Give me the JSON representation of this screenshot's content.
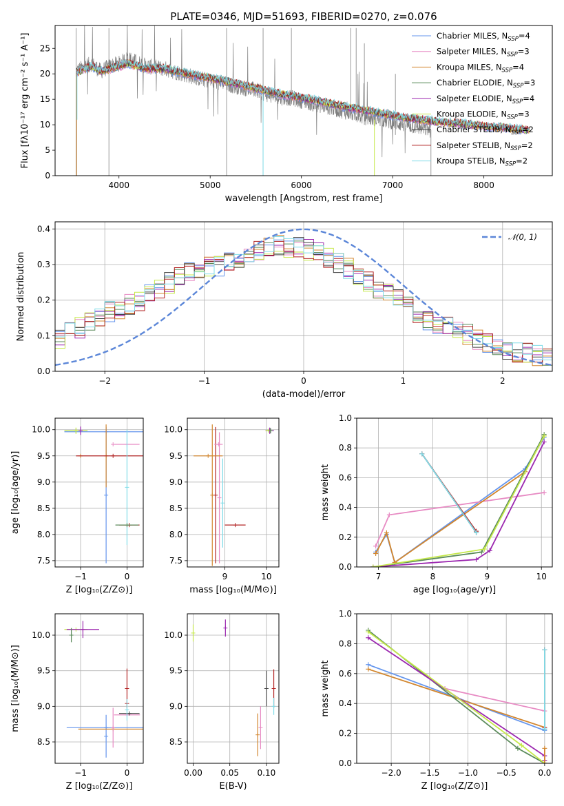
{
  "chart_data": [
    {
      "id": "spectrum",
      "type": "line",
      "title": "PLATE=0346, MJD=51693, FIBERID=0270, z=0.076",
      "xlabel": "wavelength [Angstrom, rest frame]",
      "ylabel": "Flux [fλ10⁻¹⁷ erg cm⁻² s⁻¹ A⁻¹]",
      "xlim": [
        3300,
        8750
      ],
      "ylim": [
        0,
        29.5
      ],
      "xticks": [
        4000,
        5000,
        6000,
        7000,
        8000
      ],
      "yticks": [
        0,
        5,
        10,
        15,
        20,
        25
      ],
      "data_color": "#808080",
      "data_anchors": [
        [
          3530,
          20.5
        ],
        [
          3700,
          22
        ],
        [
          3800,
          20.5
        ],
        [
          3900,
          21.5
        ],
        [
          4000,
          22
        ],
        [
          4100,
          23
        ],
        [
          4300,
          21.5
        ],
        [
          4500,
          21
        ],
        [
          4700,
          20
        ],
        [
          4900,
          19
        ],
        [
          5100,
          18.3
        ],
        [
          5300,
          17.5
        ],
        [
          5500,
          16.8
        ],
        [
          5700,
          15.5
        ],
        [
          5900,
          15.2
        ],
        [
          6100,
          14.3
        ],
        [
          6300,
          13.5
        ],
        [
          6500,
          12.5
        ],
        [
          6700,
          11.5
        ],
        [
          6900,
          11
        ],
        [
          7100,
          10.2
        ],
        [
          7300,
          9.5
        ],
        [
          7420,
          9
        ]
      ],
      "model_anchors": [
        [
          3530,
          20.2
        ],
        [
          3700,
          21.5
        ],
        [
          3800,
          20.5
        ],
        [
          3900,
          21
        ],
        [
          4000,
          21.5
        ],
        [
          4100,
          22
        ],
        [
          4300,
          21
        ],
        [
          4500,
          21
        ],
        [
          4700,
          20.2
        ],
        [
          4900,
          19.5
        ],
        [
          5100,
          18.8
        ],
        [
          5300,
          18
        ],
        [
          5500,
          17.2
        ],
        [
          5700,
          16.3
        ],
        [
          5900,
          15.6
        ],
        [
          6100,
          15
        ],
        [
          6300,
          14.2
        ],
        [
          6500,
          13.5
        ],
        [
          6700,
          12.8
        ],
        [
          6900,
          12.2
        ],
        [
          7100,
          11.5
        ],
        [
          7300,
          11
        ],
        [
          7500,
          10.6
        ],
        [
          7700,
          10.3
        ],
        [
          7900,
          9.9
        ],
        [
          8100,
          9.6
        ],
        [
          8300,
          9.3
        ],
        [
          8500,
          8.9
        ]
      ],
      "legend": [
        {
          "main": "Chabrier MILES, N",
          "sub": "SSP",
          "tail": "=4",
          "color": "#6495ed"
        },
        {
          "main": "Salpeter MILES, N",
          "sub": "SSP",
          "tail": "=3",
          "color": "#e78ac3"
        },
        {
          "main": "Kroupa MILES, N",
          "sub": "SSP",
          "tail": "=4",
          "color": "#d2862e"
        },
        {
          "main": "Chabrier ELODIE, N",
          "sub": "SSP",
          "tail": "=3",
          "color": "#5a8a5a"
        },
        {
          "main": "Salpeter ELODIE, N",
          "sub": "SSP",
          "tail": "=4",
          "color": "#9b27af"
        },
        {
          "main": "Kroupa ELODIE, N",
          "sub": "SSP",
          "tail": "=3",
          "color": "#c5e84a"
        },
        {
          "main": "Chabrier STELIB, N",
          "sub": "SSP",
          "tail": "=2",
          "color": "#444444"
        },
        {
          "main": "Salpeter STELIB, N",
          "sub": "SSP",
          "tail": "=2",
          "color": "#b22222"
        },
        {
          "main": "Kroupa STELIB, N",
          "sub": "SSP",
          "tail": "=2",
          "color": "#80dce8"
        }
      ]
    },
    {
      "id": "residuals",
      "type": "line",
      "xlabel": "(data-model)/error",
      "ylabel": "Normed distribution",
      "xlim": [
        -2.5,
        2.5
      ],
      "ylim": [
        0,
        0.42
      ],
      "xticks": [
        -2,
        -1,
        0,
        1,
        2
      ],
      "yticks": [
        0.0,
        0.1,
        0.2,
        0.3,
        0.4
      ],
      "gaussian": {
        "name": "𝒩(0, 1)",
        "mu": 0,
        "sigma": 1,
        "color": "#5b86d8"
      },
      "bin_width": 0.1,
      "profile": [
        [
          -2.5,
          0.085
        ],
        [
          -2.2,
          0.13
        ],
        [
          -2.0,
          0.165
        ],
        [
          -1.8,
          0.18
        ],
        [
          -1.5,
          0.22
        ],
        [
          -1.2,
          0.275
        ],
        [
          -1.0,
          0.29
        ],
        [
          -0.8,
          0.3
        ],
        [
          -0.5,
          0.33
        ],
        [
          -0.3,
          0.355
        ],
        [
          0.0,
          0.345
        ],
        [
          0.2,
          0.33
        ],
        [
          0.5,
          0.28
        ],
        [
          0.8,
          0.225
        ],
        [
          1.0,
          0.2
        ],
        [
          1.2,
          0.145
        ],
        [
          1.5,
          0.12
        ],
        [
          1.8,
          0.085
        ],
        [
          2.0,
          0.06
        ],
        [
          2.3,
          0.048
        ],
        [
          2.5,
          0.03
        ]
      ]
    },
    {
      "id": "age-vs-z",
      "type": "scatter",
      "xlabel": "Z [log₁₀(Z/Z⊙)]",
      "ylabel": "age  [log₁₀(age/yr)]",
      "xlim": [
        -1.55,
        0.35
      ],
      "ylim": [
        7.38,
        10.22
      ],
      "xticks": [
        -1,
        0
      ],
      "yticks": [
        7.5,
        8.0,
        8.5,
        9.0,
        9.5,
        10.0
      ],
      "errorbars": [
        {
          "x": -0.45,
          "y": 9.96,
          "xerr": 0.9,
          "yerr": 0.0,
          "color": "#6495ed"
        },
        {
          "x": -0.45,
          "y": 8.75,
          "xerr": 0.0,
          "yerr": 1.3,
          "color": "#6495ed"
        },
        {
          "x": -0.3,
          "y": 9.72,
          "xerr": 0.0,
          "yerr": 0.0,
          "color": "#e78ac3"
        },
        {
          "x": 0.0,
          "y": 9.72,
          "xerr": 0.27,
          "yerr": 0.0,
          "color": "#e78ac3"
        },
        {
          "x": -1.0,
          "y": 9.5,
          "xerr": 0.0,
          "yerr": 0.0,
          "color": "#d2862e"
        },
        {
          "x": -0.45,
          "y": 9.5,
          "xerr": 0.0,
          "yerr": 0.6,
          "color": "#d2862e"
        },
        {
          "x": -0.3,
          "y": 9.5,
          "xerr": 0.8,
          "yerr": 0.0,
          "color": "#b22222"
        },
        {
          "x": 0.05,
          "y": 8.18,
          "xerr": 0.22,
          "yerr": 0.0,
          "color": "#b22222"
        },
        {
          "x": -1.1,
          "y": 9.98,
          "xerr": 0.25,
          "yerr": 0.06,
          "color": "#c5e84a"
        },
        {
          "x": -1.0,
          "y": 9.98,
          "xerr": 0.0,
          "yerr": 0.08,
          "color": "#9b27af"
        },
        {
          "x": 0.0,
          "y": 8.9,
          "xerr": 0.0,
          "yerr": 1.1,
          "color": "#80dce8"
        },
        {
          "x": 0.0,
          "y": 8.18,
          "xerr": 0.25,
          "yerr": 0.0,
          "color": "#5a8a5a"
        }
      ]
    },
    {
      "id": "age-vs-mass",
      "type": "scatter",
      "xlabel": "mass [log₁₀(M/M⊙)]",
      "ylabel": "",
      "xlim": [
        8.1,
        10.3
      ],
      "ylim": [
        7.38,
        10.22
      ],
      "xticks": [
        9,
        10
      ],
      "yticks": [
        7.5,
        8.0,
        8.5,
        9.0,
        9.5,
        10.0
      ],
      "errorbars": [
        {
          "x": 8.7,
          "y": 8.75,
          "xerr": 0.0,
          "yerr": 1.35,
          "color": "#d2862e"
        },
        {
          "x": 8.78,
          "y": 8.75,
          "xerr": 0.0,
          "yerr": 1.3,
          "color": "#b22222"
        },
        {
          "x": 8.87,
          "y": 8.7,
          "xerr": 0.0,
          "yerr": 1.25,
          "color": "#e78ac3"
        },
        {
          "x": 8.95,
          "y": 8.6,
          "xerr": 0.0,
          "yerr": 0.85,
          "color": "#80dce8"
        },
        {
          "x": 8.6,
          "y": 9.5,
          "xerr": 0.35,
          "yerr": 0.0,
          "color": "#d2862e"
        },
        {
          "x": 8.85,
          "y": 9.72,
          "xerr": 0.1,
          "yerr": 0.0,
          "color": "#e78ac3"
        },
        {
          "x": 9.25,
          "y": 8.18,
          "xerr": 0.25,
          "yerr": 0.0,
          "color": "#b22222"
        },
        {
          "x": 10.08,
          "y": 9.98,
          "xerr": 0.1,
          "yerr": 0.06,
          "color": "#9b27af"
        },
        {
          "x": 10.05,
          "y": 9.98,
          "xerr": 0.07,
          "yerr": 0.0,
          "color": "#c5e84a"
        },
        {
          "x": 10.1,
          "y": 9.98,
          "xerr": 0.0,
          "yerr": 0.05,
          "color": "#5a8a5a"
        }
      ]
    },
    {
      "id": "weight-vs-age",
      "type": "line",
      "xlabel": "age  [log₁₀(age/yr)]",
      "ylabel": "mass weight",
      "xlim": [
        6.6,
        10.2
      ],
      "ylim": [
        0,
        1.0
      ],
      "xticks": [
        7,
        8,
        9,
        10
      ],
      "yticks": [
        0.0,
        0.2,
        0.4,
        0.6,
        0.8,
        1.0
      ],
      "series": [
        {
          "color": "#6495ed",
          "x": [
            6.95,
            7.15,
            7.3,
            9.7,
            10.05
          ],
          "y": [
            0.1,
            0.22,
            0.03,
            0.66,
            0.87
          ]
        },
        {
          "color": "#e78ac3",
          "x": [
            6.95,
            7.2,
            10.05
          ],
          "y": [
            0.14,
            0.35,
            0.5
          ]
        },
        {
          "color": "#d2862e",
          "x": [
            6.95,
            7.15,
            7.3,
            9.7,
            10.05
          ],
          "y": [
            0.09,
            0.23,
            0.03,
            0.64,
            0.88
          ]
        },
        {
          "color": "#5a8a5a",
          "x": [
            6.9,
            8.9,
            10.05
          ],
          "y": [
            0.0,
            0.1,
            0.89
          ]
        },
        {
          "color": "#9b27af",
          "x": [
            6.9,
            8.8,
            9.05,
            10.05
          ],
          "y": [
            0.0,
            0.05,
            0.11,
            0.84
          ]
        },
        {
          "color": "#c5e84a",
          "x": [
            6.9,
            8.95,
            10.05
          ],
          "y": [
            0.0,
            0.12,
            0.88
          ]
        },
        {
          "color": "#444444",
          "x": [
            7.8,
            8.8
          ],
          "y": [
            0.76,
            0.23
          ]
        },
        {
          "color": "#b22222",
          "x": [
            7.8,
            8.8
          ],
          "y": [
            0.76,
            0.24
          ]
        },
        {
          "color": "#80dce8",
          "x": [
            7.8,
            8.8
          ],
          "y": [
            0.76,
            0.23
          ]
        }
      ]
    },
    {
      "id": "mass-vs-z",
      "type": "scatter",
      "xlabel": "Z [log₁₀(Z/Z⊙)]",
      "ylabel": "mass [log₁₀(M/M⊙)]",
      "xlim": [
        -1.55,
        0.35
      ],
      "ylim": [
        8.2,
        10.3
      ],
      "xticks": [
        -1,
        0
      ],
      "yticks": [
        8.5,
        9.0,
        9.5,
        10.0
      ],
      "errorbars": [
        {
          "x": -1.1,
          "y": 10.08,
          "xerr": 0.25,
          "yerr": 0.0,
          "color": "#c5e84a"
        },
        {
          "x": -0.95,
          "y": 10.08,
          "xerr": 0.35,
          "yerr": 0.12,
          "color": "#9b27af"
        },
        {
          "x": -1.2,
          "y": 10.0,
          "xerr": 0.0,
          "yerr": 0.1,
          "color": "#5a8a5a"
        },
        {
          "x": -0.45,
          "y": 8.7,
          "xerr": 0.85,
          "yerr": 0.0,
          "color": "#6495ed"
        },
        {
          "x": -0.45,
          "y": 8.58,
          "xerr": 0.0,
          "yerr": 0.3,
          "color": "#6495ed"
        },
        {
          "x": -0.3,
          "y": 8.68,
          "xerr": 0.75,
          "yerr": 0.0,
          "color": "#d2862e"
        },
        {
          "x": 0.0,
          "y": 8.88,
          "xerr": 0.28,
          "yerr": 0.0,
          "color": "#e78ac3"
        },
        {
          "x": -0.3,
          "y": 8.7,
          "xerr": 0.0,
          "yerr": 0.28,
          "color": "#e78ac3"
        },
        {
          "x": 0.0,
          "y": 9.04,
          "xerr": 0.0,
          "yerr": 0.0,
          "color": "#b22222"
        },
        {
          "x": 0.0,
          "y": 9.25,
          "xerr": 0.0,
          "yerr": 0.28,
          "color": "#b22222"
        },
        {
          "x": 0.05,
          "y": 8.9,
          "xerr": 0.22,
          "yerr": 0.0,
          "color": "#444444"
        },
        {
          "x": 0.0,
          "y": 8.95,
          "xerr": 0.0,
          "yerr": 0.15,
          "color": "#80dce8"
        }
      ]
    },
    {
      "id": "mass-vs-ebv",
      "type": "scatter",
      "xlabel": "E(B-V)",
      "ylabel": "",
      "xlim": [
        -0.008,
        0.117
      ],
      "ylim": [
        8.2,
        10.3
      ],
      "xticks": [
        0.0,
        0.05,
        0.1
      ],
      "xticklabels": [
        "0.00",
        "0.05",
        "0.10"
      ],
      "yticks": [
        8.5,
        9.0,
        9.5,
        10.0
      ],
      "errorbars": [
        {
          "x": 0.0,
          "y": 10.03,
          "xerr": 0.0,
          "yerr": 0.12,
          "color": "#c5e84a"
        },
        {
          "x": 0.044,
          "y": 10.1,
          "xerr": 0.0,
          "yerr": 0.12,
          "color": "#9b27af"
        },
        {
          "x": 0.088,
          "y": 8.6,
          "xerr": 0.0,
          "yerr": 0.3,
          "color": "#d2862e"
        },
        {
          "x": 0.092,
          "y": 8.7,
          "xerr": 0.0,
          "yerr": 0.3,
          "color": "#e78ac3"
        },
        {
          "x": 0.1,
          "y": 9.25,
          "xerr": 0.0,
          "yerr": 0.25,
          "color": "#444444"
        },
        {
          "x": 0.11,
          "y": 9.25,
          "xerr": 0.0,
          "yerr": 0.27,
          "color": "#b22222"
        },
        {
          "x": 0.11,
          "y": 9.0,
          "xerr": 0.0,
          "yerr": 0.12,
          "color": "#80dce8"
        }
      ]
    },
    {
      "id": "weight-vs-z",
      "type": "line",
      "xlabel": "Z [log₁₀(Z/Z⊙)]",
      "ylabel": "mass weight",
      "xlim": [
        -2.45,
        0.1
      ],
      "ylim": [
        0,
        1.0
      ],
      "xticks": [
        -2.0,
        -1.5,
        -1.0,
        -0.5,
        0.0
      ],
      "xticklabels": [
        "−2.0",
        "−1.5",
        "−1.0",
        "−0.5",
        "0.0"
      ],
      "yticks": [
        0.0,
        0.2,
        0.4,
        0.6,
        0.8,
        1.0
      ],
      "series": [
        {
          "color": "#6495ed",
          "x": [
            -2.3,
            0.0
          ],
          "y": [
            0.66,
            0.22
          ]
        },
        {
          "color": "#e78ac3",
          "x": [
            -1.3,
            0.0
          ],
          "y": [
            0.5,
            0.35
          ]
        },
        {
          "color": "#d2862e",
          "x": [
            -2.3,
            0.0
          ],
          "y": [
            0.63,
            0.24
          ]
        },
        {
          "color": "#5a8a5a",
          "x": [
            -2.3,
            -0.35,
            0.0
          ],
          "y": [
            0.89,
            0.1,
            0.0
          ]
        },
        {
          "color": "#9b27af",
          "x": [
            -2.3,
            0.0,
            0.0
          ],
          "y": [
            0.84,
            0.05,
            0.02
          ]
        },
        {
          "color": "#c5e84a",
          "x": [
            -2.3,
            -0.3,
            0.0
          ],
          "y": [
            0.88,
            0.12,
            0.0
          ]
        },
        {
          "color": "#444444",
          "x": [
            0.0,
            0.0
          ],
          "y": [
            0.23,
            0.76
          ]
        },
        {
          "color": "#b22222",
          "x": [
            0.0,
            0.0
          ],
          "y": [
            0.24,
            0.76
          ]
        },
        {
          "color": "#80dce8",
          "x": [
            0.0,
            0.0
          ],
          "y": [
            0.23,
            0.76
          ]
        },
        {
          "color": "#d2862e",
          "x": [
            0.0,
            0.0
          ],
          "y": [
            0.1,
            0.0
          ]
        }
      ]
    }
  ]
}
